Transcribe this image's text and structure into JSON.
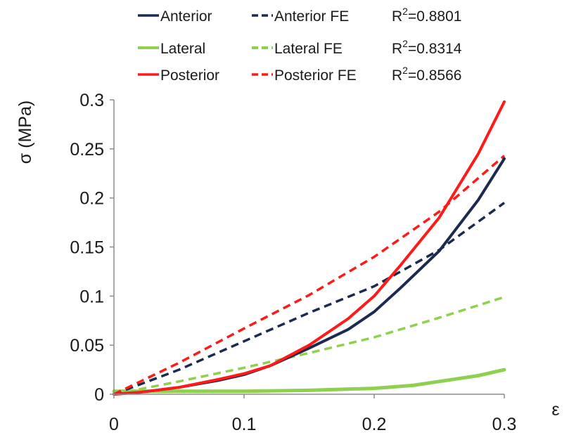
{
  "chart_data": {
    "type": "line",
    "xlabel": "ε",
    "ylabel": "σ (MPa)",
    "xlim": [
      0,
      0.3
    ],
    "ylim": [
      0,
      0.3
    ],
    "x_ticks": [
      "0",
      "0.1",
      "0.2",
      "0.3"
    ],
    "y_ticks": [
      "0",
      "0.05",
      "0.1",
      "0.15",
      "0.2",
      "0.25",
      "0.3"
    ],
    "grid": false,
    "legend_position": "top",
    "colors": {
      "anterior": "#1b2a4e",
      "lateral": "#8fd14f",
      "posterior": "#ff1a1a"
    },
    "series": [
      {
        "name": "Anterior",
        "key": "anterior",
        "style": "solid",
        "x": [
          0,
          0.02,
          0.05,
          0.08,
          0.1,
          0.12,
          0.15,
          0.18,
          0.2,
          0.22,
          0.25,
          0.28,
          0.3
        ],
        "y": [
          0,
          0.002,
          0.007,
          0.014,
          0.02,
          0.029,
          0.047,
          0.066,
          0.084,
          0.108,
          0.146,
          0.198,
          0.24
        ]
      },
      {
        "name": "Anterior FE",
        "key": "anterior",
        "style": "dashed",
        "x": [
          0,
          0.05,
          0.1,
          0.15,
          0.2,
          0.25,
          0.3
        ],
        "y": [
          0,
          0.025,
          0.054,
          0.083,
          0.11,
          0.147,
          0.195
        ]
      },
      {
        "name": "Lateral",
        "key": "lateral",
        "style": "solid",
        "x": [
          0,
          0.05,
          0.1,
          0.15,
          0.2,
          0.23,
          0.25,
          0.28,
          0.3
        ],
        "y": [
          0.003,
          0.003,
          0.003,
          0.004,
          0.006,
          0.009,
          0.013,
          0.019,
          0.025
        ]
      },
      {
        "name": "Lateral FE",
        "key": "lateral",
        "style": "dashed",
        "x": [
          0,
          0.05,
          0.1,
          0.15,
          0.2,
          0.25,
          0.3
        ],
        "y": [
          0,
          0.013,
          0.027,
          0.042,
          0.058,
          0.078,
          0.099
        ]
      },
      {
        "name": "Posterior",
        "key": "posterior",
        "style": "solid",
        "x": [
          0,
          0.02,
          0.05,
          0.08,
          0.1,
          0.12,
          0.15,
          0.18,
          0.2,
          0.22,
          0.25,
          0.28,
          0.3
        ],
        "y": [
          0,
          0.002,
          0.007,
          0.015,
          0.021,
          0.029,
          0.05,
          0.077,
          0.1,
          0.131,
          0.18,
          0.245,
          0.298
        ]
      },
      {
        "name": "Posterior FE",
        "key": "posterior",
        "style": "dashed",
        "x": [
          0,
          0.05,
          0.1,
          0.15,
          0.2,
          0.25,
          0.3
        ],
        "y": [
          0,
          0.032,
          0.067,
          0.101,
          0.14,
          0.186,
          0.243
        ]
      }
    ],
    "r_squared": [
      {
        "prefix": "R",
        "sup": "2",
        "value": "=0.8801"
      },
      {
        "prefix": "R",
        "sup": "2",
        "value": "=0.8314"
      },
      {
        "prefix": "R",
        "sup": "2",
        "value": "=0.8566"
      }
    ]
  }
}
